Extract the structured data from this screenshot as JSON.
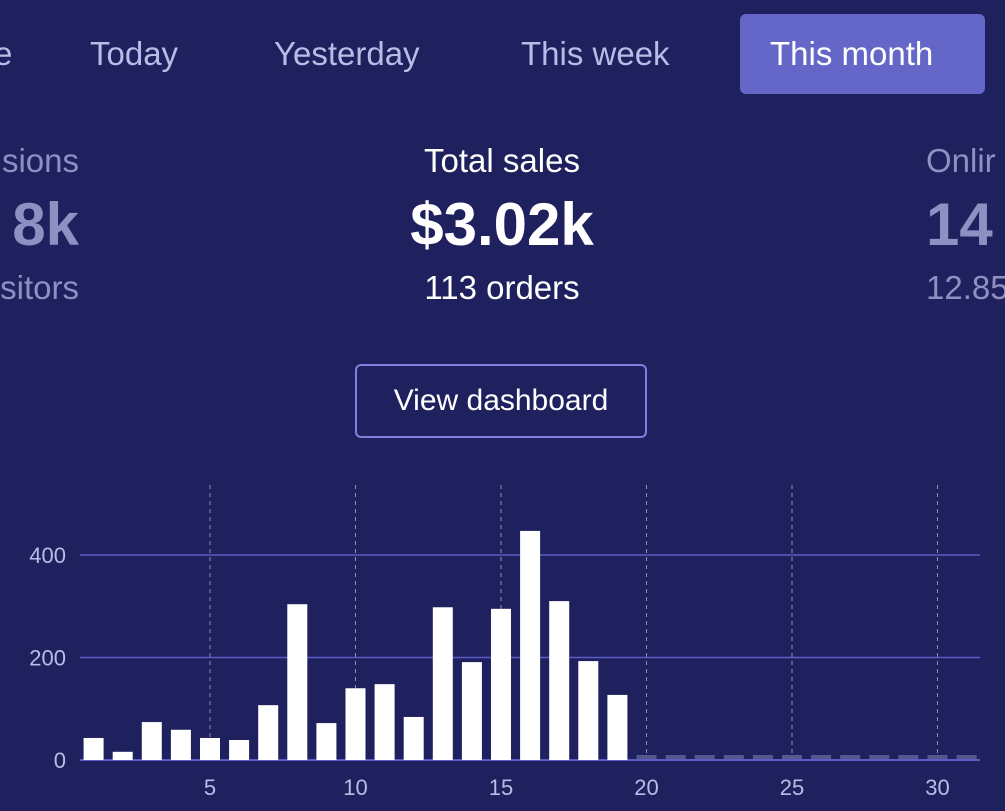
{
  "tabs": [
    {
      "label": "e"
    },
    {
      "label": "Today"
    },
    {
      "label": "Yesterday"
    },
    {
      "label": "This week"
    },
    {
      "label": "This month",
      "active": true
    }
  ],
  "stats": {
    "left": {
      "label": "sions",
      "value": "8k",
      "sub": "sitors"
    },
    "center": {
      "label": "Total sales",
      "value": "$3.02k",
      "sub": "113 orders"
    },
    "right": {
      "label": "Onlir",
      "value": "14",
      "sub": "12.85"
    }
  },
  "view_dashboard": "View dashboard",
  "colors": {
    "background": "#1f205e",
    "accent": "#6467c7",
    "bar": "#ffffff",
    "grid": "#5a5dc4"
  },
  "chart_data": {
    "type": "bar",
    "x": [
      1,
      2,
      3,
      4,
      5,
      6,
      7,
      8,
      9,
      10,
      11,
      12,
      13,
      14,
      15,
      16,
      17,
      18,
      19
    ],
    "values": [
      43,
      16,
      74,
      59,
      43,
      39,
      107,
      304,
      72,
      140,
      148,
      84,
      298,
      191,
      295,
      447,
      310,
      193,
      127
    ],
    "future_days": [
      20,
      21,
      22,
      23,
      24,
      25,
      26,
      27,
      28,
      29,
      30,
      31
    ],
    "xlim": [
      1,
      31
    ],
    "ylim": [
      0,
      450
    ],
    "yticks": [
      "0",
      "200",
      "400"
    ],
    "xticks": [
      "5",
      "10",
      "15",
      "20",
      "25",
      "30"
    ],
    "grid": true
  }
}
